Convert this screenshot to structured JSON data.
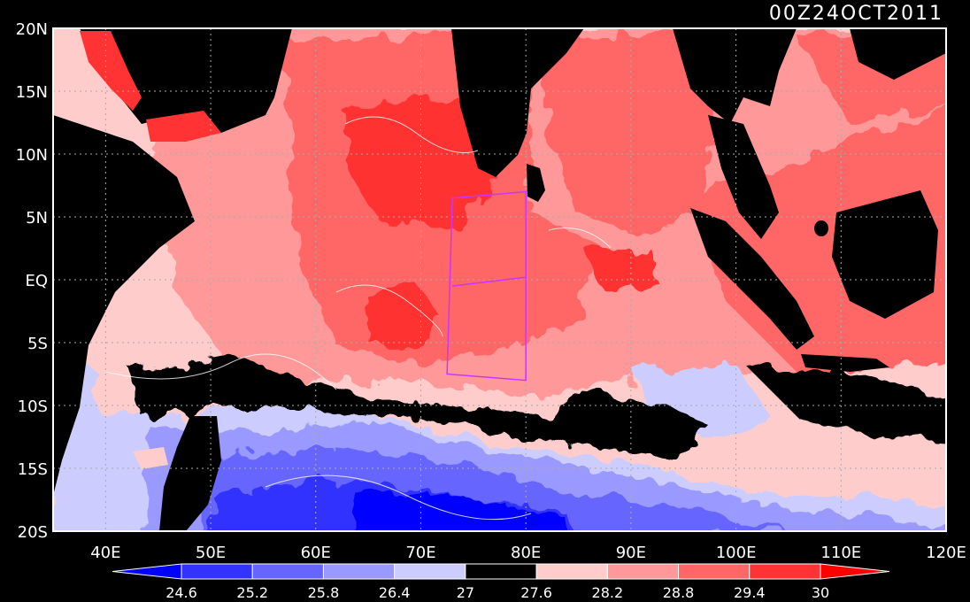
{
  "title": "00Z24OCT2011",
  "map": {
    "x_range": [
      35,
      120
    ],
    "y_range": [
      -20,
      20
    ],
    "x_ticks": [
      {
        "value": 40,
        "label": "40E"
      },
      {
        "value": 50,
        "label": "50E"
      },
      {
        "value": 60,
        "label": "60E"
      },
      {
        "value": 70,
        "label": "70E"
      },
      {
        "value": 80,
        "label": "80E"
      },
      {
        "value": 90,
        "label": "90E"
      },
      {
        "value": 100,
        "label": "100E"
      },
      {
        "value": 110,
        "label": "110E"
      },
      {
        "value": 120,
        "label": "120E"
      }
    ],
    "y_ticks": [
      {
        "value": 20,
        "label": "20N"
      },
      {
        "value": 15,
        "label": "15N"
      },
      {
        "value": 10,
        "label": "10N"
      },
      {
        "value": 5,
        "label": "5N"
      },
      {
        "value": 0,
        "label": "EQ"
      },
      {
        "value": -5,
        "label": "5S"
      },
      {
        "value": -10,
        "label": "10S"
      },
      {
        "value": -15,
        "label": "15S"
      },
      {
        "value": -20,
        "label": "20S"
      }
    ],
    "grid": "dotted",
    "outline_box": [
      [
        73,
        6.5
      ],
      [
        80,
        7
      ],
      [
        80,
        -8
      ],
      [
        72.5,
        -7.5
      ]
    ]
  },
  "colorbar": {
    "levels": [
      "24.6",
      "25.2",
      "25.8",
      "26.4",
      "27",
      "27.6",
      "28.2",
      "28.8",
      "29.4",
      "30"
    ],
    "colors": [
      "#0000ff",
      "#3333ff",
      "#6666ff",
      "#9999ff",
      "#ccccff",
      "#000000",
      "#ffcccc",
      "#ff9999",
      "#ff6666",
      "#ff3333",
      "#ff0000"
    ]
  }
}
